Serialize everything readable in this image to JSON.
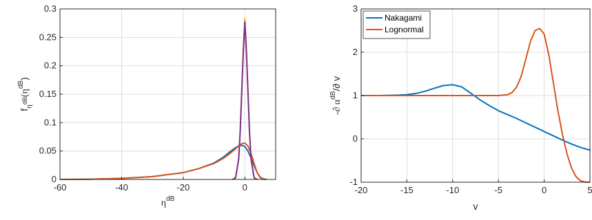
{
  "chart_data": [
    {
      "type": "line",
      "xlabel_base": "η",
      "xlabel_sup": "dB",
      "ylabel_f": "f",
      "ylabel_sub": "η",
      "ylabel_subsup": "dB",
      "ylabel_arg_open": "(η",
      "ylabel_arg_sup": "dB",
      "ylabel_arg_close": ")",
      "xlim": [
        -60,
        10
      ],
      "ylim": [
        0,
        0.3
      ],
      "xticks": [
        -60,
        -40,
        -20,
        0
      ],
      "yticks": [
        0,
        0.05,
        0.1,
        0.15,
        0.2,
        0.25,
        0.3
      ],
      "ytick_labels": [
        "0",
        "0.05",
        "0.1",
        "0.15",
        "0.2",
        "0.25",
        "0.3"
      ],
      "grid": true,
      "series": [
        {
          "color": "#0072BD",
          "x": [
            -60,
            -50,
            -40,
            -30,
            -20,
            -15,
            -10,
            -7,
            -5,
            -3,
            -2,
            -1,
            0,
            1,
            2,
            3,
            4,
            5,
            6,
            7
          ],
          "y": [
            0,
            0.0004,
            0.0018,
            0.005,
            0.012,
            0.019,
            0.029,
            0.039,
            0.048,
            0.056,
            0.059,
            0.06,
            0.058,
            0.05,
            0.038,
            0.024,
            0.012,
            0.004,
            0.001,
            0
          ]
        },
        {
          "color": "#D95319",
          "x": [
            -60,
            -50,
            -40,
            -30,
            -20,
            -15,
            -10,
            -7,
            -5,
            -3,
            -2,
            -1,
            0,
            1,
            2,
            3,
            4,
            5,
            6,
            7
          ],
          "y": [
            0,
            0.0004,
            0.0018,
            0.005,
            0.012,
            0.019,
            0.028,
            0.037,
            0.045,
            0.054,
            0.059,
            0.063,
            0.064,
            0.059,
            0.046,
            0.028,
            0.012,
            0.003,
            0.0005,
            0
          ]
        },
        {
          "color": "#EDB120",
          "x": [
            -4,
            -3,
            -2,
            -1.5,
            -1,
            -0.5,
            0,
            0.5,
            1,
            1.5,
            2,
            3,
            4
          ],
          "y": [
            0,
            0.003,
            0.037,
            0.087,
            0.158,
            0.23,
            0.283,
            0.23,
            0.158,
            0.087,
            0.037,
            0.003,
            0
          ]
        },
        {
          "color": "#7E2F8E",
          "x": [
            -4,
            -3,
            -2,
            -1.5,
            -1,
            -0.5,
            0,
            0.5,
            1,
            1.5,
            2,
            3,
            4
          ],
          "y": [
            0,
            0.003,
            0.036,
            0.085,
            0.155,
            0.226,
            0.277,
            0.226,
            0.155,
            0.085,
            0.036,
            0.003,
            0
          ]
        }
      ]
    },
    {
      "type": "line",
      "xlabel": "v",
      "ylabel_a": "-∂ α",
      "ylabel_sup": "dB",
      "ylabel_b": "/∂ v",
      "xlim": [
        -20,
        5
      ],
      "ylim": [
        -1,
        3
      ],
      "xticks": [
        -20,
        -15,
        -10,
        -5,
        0,
        5
      ],
      "yticks": [
        -1,
        0,
        1,
        2,
        3
      ],
      "grid": true,
      "legend": "top-left",
      "series": [
        {
          "name": "Nakagami",
          "color": "#0072BD",
          "x": [
            -20,
            -18,
            -16,
            -15,
            -14,
            -13,
            -12,
            -11,
            -10,
            -9,
            -8,
            -7,
            -6,
            -5,
            -4,
            -3,
            -2,
            -1,
            0,
            1,
            2,
            3,
            4,
            5
          ],
          "y": [
            1.0,
            1.0,
            1.01,
            1.02,
            1.05,
            1.1,
            1.17,
            1.23,
            1.25,
            1.2,
            1.05,
            0.9,
            0.77,
            0.65,
            0.56,
            0.47,
            0.37,
            0.27,
            0.17,
            0.07,
            -0.03,
            -0.12,
            -0.2,
            -0.26
          ]
        },
        {
          "name": "Lognormal",
          "color": "#D95319",
          "x": [
            -20,
            -10,
            -6,
            -5,
            -4,
            -3.5,
            -3,
            -2.5,
            -2,
            -1.5,
            -1,
            -0.5,
            0,
            0.5,
            1,
            1.5,
            2,
            2.5,
            3,
            3.5,
            4,
            4.5,
            5
          ],
          "y": [
            1.0,
            1.0,
            1.0,
            1.0,
            1.02,
            1.07,
            1.2,
            1.45,
            1.85,
            2.25,
            2.5,
            2.55,
            2.42,
            1.95,
            1.3,
            0.65,
            0.1,
            -0.35,
            -0.68,
            -0.88,
            -0.97,
            -1.0,
            -1.0
          ]
        }
      ]
    }
  ]
}
